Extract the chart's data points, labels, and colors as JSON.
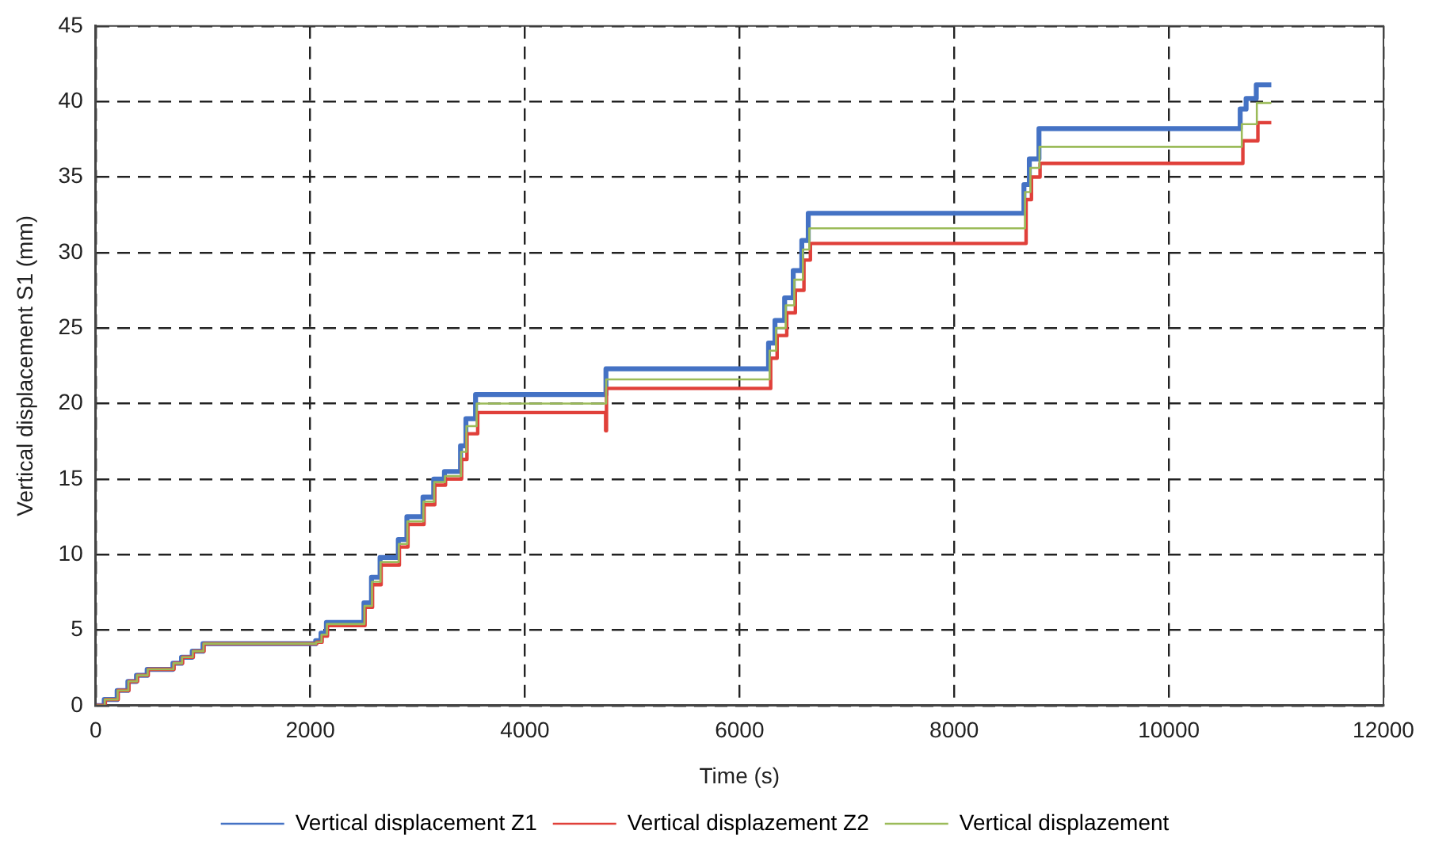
{
  "chart_data": {
    "type": "step",
    "xlabel": "Time (s)",
    "ylabel": "Vertical displacement S1 (mm)",
    "xlim": [
      0,
      12000
    ],
    "xticks": [
      0,
      2000,
      4000,
      6000,
      8000,
      10000,
      12000
    ],
    "ylim": [
      0,
      45
    ],
    "yticks": [
      0,
      5,
      10,
      15,
      20,
      25,
      30,
      35,
      40,
      45
    ],
    "grid": true,
    "legend": "bottom",
    "marker": "none",
    "line_style": "solid",
    "series": [
      {
        "name": "Vertical displacement Z1",
        "color": "#4472c4",
        "x": [
          0,
          80,
          200,
          300,
          380,
          480,
          720,
          800,
          900,
          1000,
          2050,
          2100,
          2150,
          2500,
          2570,
          2650,
          2820,
          2900,
          3050,
          3150,
          3250,
          3400,
          3450,
          3540,
          4755,
          6270,
          6330,
          6420,
          6500,
          6580,
          6640,
          8650,
          8700,
          8790,
          10665,
          10720,
          10815,
          10955
        ],
        "values": [
          0,
          0.4,
          1.0,
          1.6,
          2.0,
          2.4,
          2.8,
          3.2,
          3.6,
          4.1,
          4.3,
          4.8,
          5.5,
          6.8,
          8.5,
          9.8,
          11.0,
          12.5,
          13.8,
          15.0,
          15.5,
          17.2,
          19.0,
          20.6,
          22.3,
          24.0,
          25.5,
          27.0,
          28.8,
          30.8,
          32.6,
          34.5,
          36.2,
          38.2,
          39.5,
          40.2,
          41.1,
          41.1
        ]
      },
      {
        "name": "Vertical displazement Z2",
        "color": "#e0403a",
        "x": [
          0,
          90,
          210,
          310,
          390,
          490,
          730,
          810,
          910,
          1010,
          2060,
          2110,
          2160,
          2510,
          2580,
          2660,
          2830,
          2910,
          3060,
          3160,
          3260,
          3410,
          3460,
          3560,
          4752,
          4760,
          6290,
          6350,
          6440,
          6520,
          6600,
          6660,
          8670,
          8720,
          8800,
          10690,
          10830,
          10955
        ],
        "values": [
          0,
          0.4,
          1.0,
          1.6,
          2.0,
          2.4,
          2.8,
          3.2,
          3.6,
          4.1,
          4.2,
          4.6,
          5.3,
          6.5,
          8.0,
          9.3,
          10.5,
          12.0,
          13.3,
          14.6,
          15.0,
          16.3,
          18.0,
          19.4,
          18.2,
          21.0,
          23.0,
          24.5,
          26.0,
          27.5,
          29.5,
          30.6,
          33.5,
          35.0,
          35.9,
          37.4,
          38.6,
          38.6
        ]
      },
      {
        "name": "Vertical displazement",
        "color": "#9bbb59",
        "x": [
          0,
          85,
          205,
          305,
          385,
          485,
          725,
          805,
          905,
          1005,
          2055,
          2105,
          2155,
          2505,
          2575,
          2655,
          2825,
          2905,
          3055,
          3155,
          3255,
          3405,
          3455,
          3550,
          4757,
          6280,
          6340,
          6430,
          6510,
          6590,
          6650,
          8660,
          8710,
          8795,
          10680,
          10820,
          10955
        ],
        "values": [
          0,
          0.4,
          1.0,
          1.6,
          2.0,
          2.4,
          2.8,
          3.2,
          3.6,
          4.1,
          4.2,
          4.7,
          5.4,
          6.6,
          8.2,
          9.5,
          10.7,
          12.2,
          13.5,
          14.8,
          15.2,
          16.8,
          18.5,
          20.0,
          21.6,
          23.5,
          25.0,
          26.5,
          28.2,
          30.2,
          31.6,
          34.0,
          35.6,
          37.0,
          38.5,
          39.9,
          39.9
        ]
      }
    ]
  }
}
